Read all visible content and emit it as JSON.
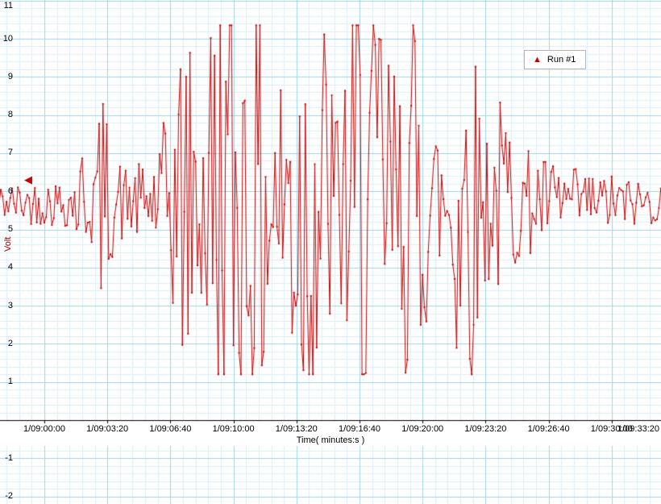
{
  "chart_data": {
    "type": "line",
    "title": "",
    "xlabel": "Time( minutes:s )",
    "ylabel": "Volt",
    "legend_position": "top-right",
    "grid": {
      "minor_color": "#dcf0f8",
      "major_color": "#9ed4e8",
      "x_major_s": 200,
      "x_minor_s": 40,
      "y_major": 1,
      "y_minor": 0.2
    },
    "x_axis": {
      "tick_times_s": [
        0,
        200,
        400,
        600,
        800,
        1000,
        1200,
        1400,
        1600,
        1800,
        2000
      ],
      "tick_labels": [
        "1/09:00:00",
        "1/09:03:20",
        "1/09:06:40",
        "1/09:10:00",
        "1/09:13:20",
        "1/09:16:40",
        "1/09:20:00",
        "1/09:23:20",
        "1/09:26:40",
        "1/09:30:00",
        "1/09:33:20"
      ],
      "axis_at_value": 0
    },
    "y_axis": {
      "tick_values": [
        11,
        10,
        9,
        8,
        7,
        6,
        5,
        4,
        3,
        2,
        1,
        -1,
        -2
      ],
      "visible_range": [
        -2.2,
        11.02
      ]
    },
    "series": [
      {
        "name": "Run #1",
        "color": "#c80000",
        "marker": "dot",
        "baseline": 5.7,
        "clip_limits": [
          1.2,
          10.35
        ],
        "t_range_s": [
          -150,
          2085
        ],
        "sample_interval_s": 6,
        "noise_gain": 1.35,
        "seed": 42,
        "amplitude_envelope": [
          [
            -150,
            0.35
          ],
          [
            90,
            0.5
          ],
          [
            115,
            1.3
          ],
          [
            135,
            0.9
          ],
          [
            150,
            0.9
          ],
          [
            185,
            2.2
          ],
          [
            215,
            1.1
          ],
          [
            260,
            0.7
          ],
          [
            330,
            0.8
          ],
          [
            380,
            1.6
          ],
          [
            420,
            2.8
          ],
          [
            450,
            3.8
          ],
          [
            480,
            2.0
          ],
          [
            510,
            3.0
          ],
          [
            545,
            5.2
          ],
          [
            620,
            4.6
          ],
          [
            680,
            5.2
          ],
          [
            740,
            2.2
          ],
          [
            790,
            5.0
          ],
          [
            870,
            4.8
          ],
          [
            930,
            2.0
          ],
          [
            980,
            5.2
          ],
          [
            1060,
            4.8
          ],
          [
            1120,
            2.4
          ],
          [
            1170,
            4.4
          ],
          [
            1220,
            2.2
          ],
          [
            1260,
            1.6
          ],
          [
            1300,
            3.8
          ],
          [
            1340,
            4.8
          ],
          [
            1380,
            2.2
          ],
          [
            1420,
            1.5
          ],
          [
            1460,
            2.4
          ],
          [
            1500,
            1.2
          ],
          [
            1560,
            0.95
          ],
          [
            1620,
            0.8
          ],
          [
            1700,
            0.65
          ],
          [
            1800,
            0.55
          ],
          [
            1900,
            0.45
          ],
          [
            2085,
            0.35
          ]
        ]
      }
    ],
    "cursor": {
      "value": 6.3,
      "color": "#cc0000",
      "glyph": "◀"
    }
  },
  "legend": {
    "label": "Run #1",
    "marker_glyph": "▲",
    "marker_color": "#cc0000"
  }
}
